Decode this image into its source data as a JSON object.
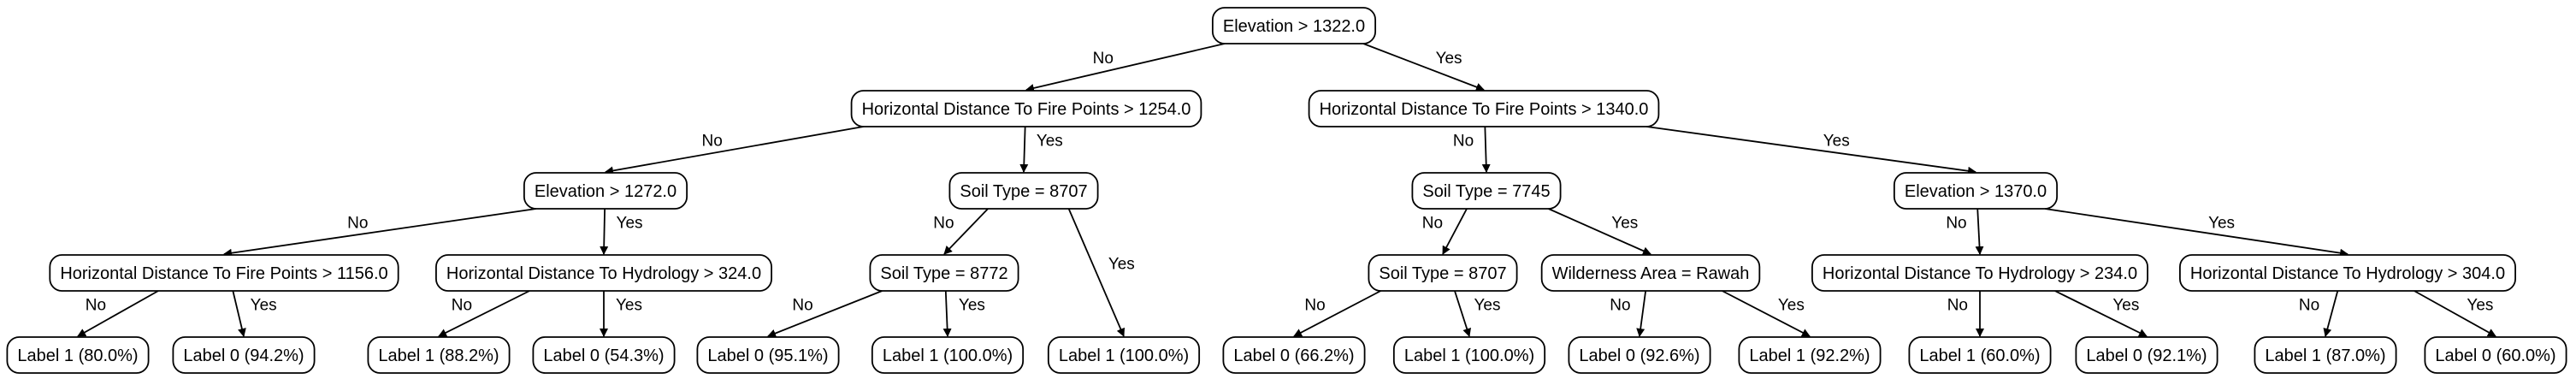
{
  "tree": {
    "nodes": [
      {
        "id": "n0",
        "label": "Elevation > 1322.0"
      },
      {
        "id": "n1",
        "label": "Horizontal Distance To Fire Points > 1254.0"
      },
      {
        "id": "n2",
        "label": "Horizontal Distance To Fire Points > 1340.0"
      },
      {
        "id": "n3",
        "label": "Elevation > 1272.0"
      },
      {
        "id": "n4",
        "label": "Soil Type = 8707"
      },
      {
        "id": "n5",
        "label": "Soil Type = 7745"
      },
      {
        "id": "n6",
        "label": "Elevation > 1370.0"
      },
      {
        "id": "n7",
        "label": "Horizontal Distance To Fire Points > 1156.0"
      },
      {
        "id": "n8",
        "label": "Horizontal Distance To Hydrology > 324.0"
      },
      {
        "id": "n9",
        "label": "Soil Type = 8772"
      },
      {
        "id": "n10",
        "label": "Soil Type = 8707"
      },
      {
        "id": "n11",
        "label": "Wilderness Area = Rawah"
      },
      {
        "id": "n12",
        "label": "Horizontal Distance To Hydrology > 234.0"
      },
      {
        "id": "n13",
        "label": "Horizontal Distance To Hydrology > 304.0"
      },
      {
        "id": "l1",
        "label": "Label 1 (80.0%)"
      },
      {
        "id": "l2",
        "label": "Label 0 (94.2%)"
      },
      {
        "id": "l3",
        "label": "Label 1 (88.2%)"
      },
      {
        "id": "l4",
        "label": "Label 0 (54.3%)"
      },
      {
        "id": "l5",
        "label": "Label 0 (95.1%)"
      },
      {
        "id": "l6",
        "label": "Label 1 (100.0%)"
      },
      {
        "id": "l7",
        "label": "Label 1 (100.0%)"
      },
      {
        "id": "l8",
        "label": "Label 0 (66.2%)"
      },
      {
        "id": "l9",
        "label": "Label 1 (100.0%)"
      },
      {
        "id": "l10",
        "label": "Label 0 (92.6%)"
      },
      {
        "id": "l11",
        "label": "Label 1 (92.2%)"
      },
      {
        "id": "l12",
        "label": "Label 1 (60.0%)"
      },
      {
        "id": "l13",
        "label": "Label 0 (92.1%)"
      },
      {
        "id": "l14",
        "label": "Label 1 (87.0%)"
      },
      {
        "id": "l15",
        "label": "Label 0 (60.0%)"
      }
    ],
    "edges": [
      {
        "from": "n0",
        "to": "n1",
        "label": "No"
      },
      {
        "from": "n0",
        "to": "n2",
        "label": "Yes"
      },
      {
        "from": "n1",
        "to": "n3",
        "label": "No"
      },
      {
        "from": "n1",
        "to": "n4",
        "label": "Yes"
      },
      {
        "from": "n2",
        "to": "n5",
        "label": "No"
      },
      {
        "from": "n2",
        "to": "n6",
        "label": "Yes"
      },
      {
        "from": "n3",
        "to": "n7",
        "label": "No"
      },
      {
        "from": "n3",
        "to": "n8",
        "label": "Yes"
      },
      {
        "from": "n4",
        "to": "n9",
        "label": "No"
      },
      {
        "from": "n4",
        "to": "l7",
        "label": "Yes"
      },
      {
        "from": "n5",
        "to": "n10",
        "label": "No"
      },
      {
        "from": "n5",
        "to": "n11",
        "label": "Yes"
      },
      {
        "from": "n6",
        "to": "n12",
        "label": "No"
      },
      {
        "from": "n6",
        "to": "n13",
        "label": "Yes"
      },
      {
        "from": "n7",
        "to": "l1",
        "label": "No"
      },
      {
        "from": "n7",
        "to": "l2",
        "label": "Yes"
      },
      {
        "from": "n8",
        "to": "l3",
        "label": "No"
      },
      {
        "from": "n8",
        "to": "l4",
        "label": "Yes"
      },
      {
        "from": "n9",
        "to": "l5",
        "label": "No"
      },
      {
        "from": "n9",
        "to": "l6",
        "label": "Yes"
      },
      {
        "from": "n10",
        "to": "l8",
        "label": "No"
      },
      {
        "from": "n10",
        "to": "l9",
        "label": "Yes"
      },
      {
        "from": "n11",
        "to": "l10",
        "label": "No"
      },
      {
        "from": "n11",
        "to": "l11",
        "label": "Yes"
      },
      {
        "from": "n12",
        "to": "l12",
        "label": "No"
      },
      {
        "from": "n12",
        "to": "l13",
        "label": "Yes"
      },
      {
        "from": "n13",
        "to": "l14",
        "label": "No"
      },
      {
        "from": "n13",
        "to": "l15",
        "label": "Yes"
      }
    ]
  }
}
